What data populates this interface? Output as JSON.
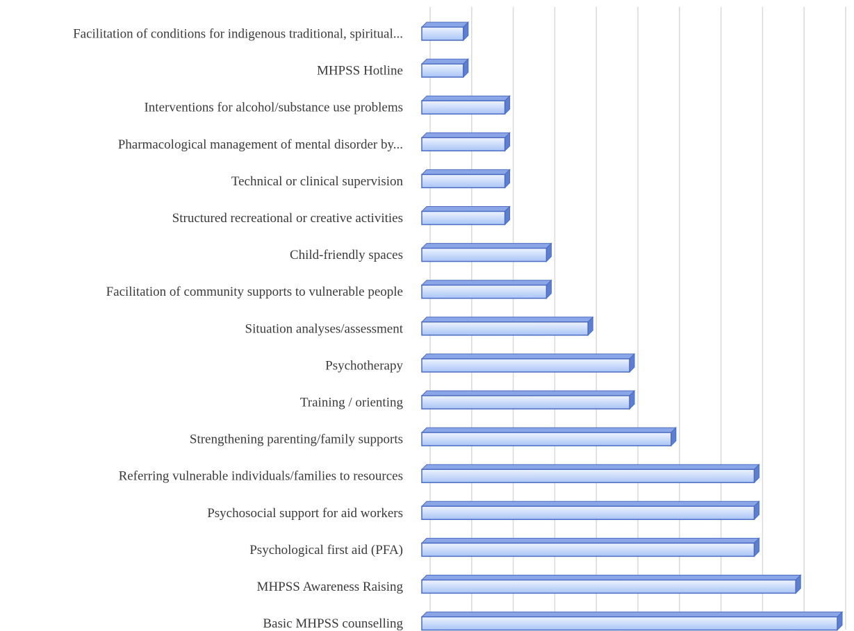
{
  "chart_data": {
    "type": "bar",
    "orientation": "horizontal",
    "title": "",
    "xlabel": "",
    "ylabel": "",
    "categories": [
      "Facilitation of conditions for indigenous traditional, spiritual...",
      "MHPSS Hotline",
      "Interventions for alcohol/substance use problems",
      "Pharmacological management of mental disorder by...",
      "Technical or clinical supervision",
      "Structured recreational or creative activities",
      "Child-friendly spaces",
      "Facilitation of community supports to vulnerable people",
      "Situation analyses/assessment",
      "Psychotherapy",
      "Training / orienting",
      "Strengthening parenting/family supports",
      "Referring vulnerable individuals/families to resources",
      "Psychosocial support for aid workers",
      "Psychological first aid (PFA)",
      "MHPSS Awareness Raising",
      "Basic MHPSS counselling"
    ],
    "values": [
      1,
      1,
      2,
      2,
      2,
      2,
      3,
      3,
      4,
      5,
      5,
      6,
      8,
      8,
      8,
      9,
      10
    ],
    "xlim": [
      0,
      10.2
    ],
    "gridlines": "vertical",
    "tick_labels_shown": false,
    "bar_style": "3d",
    "colors": {
      "bar_fill_top": "#eef3ff",
      "bar_fill_bottom": "#a9c4f5",
      "bar_edge": "#4a6bc4",
      "bar_side": "#5e7fcf",
      "bar_top_face": "#8aa6e6",
      "grid": "#d9d9d9",
      "label": "#3a3a3a"
    }
  }
}
